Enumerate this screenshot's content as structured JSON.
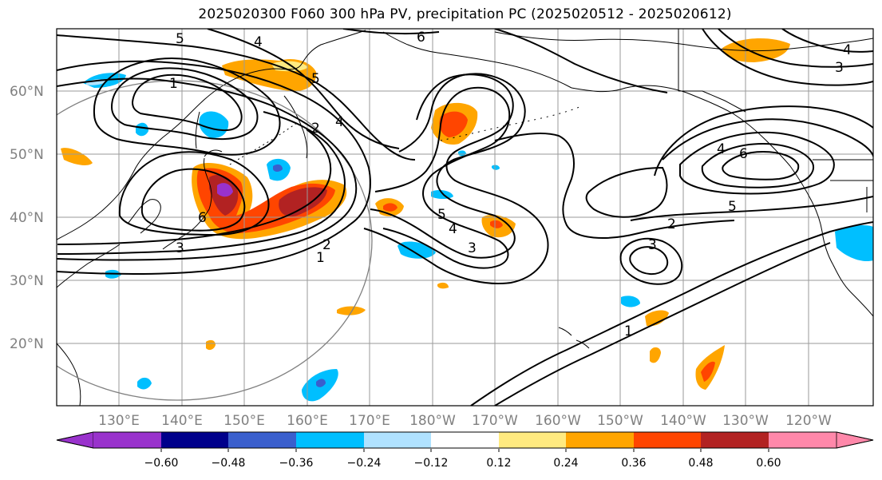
{
  "title": "2025020300 F060 300 hPa PV, precipitation PC (2025020512 - 2025020612)",
  "lat_labels": [
    "60°N",
    "50°N",
    "40°N",
    "30°N",
    "20°N"
  ],
  "lon_labels": [
    "130°E",
    "140°E",
    "150°E",
    "160°E",
    "170°E",
    "180°W",
    "170°W",
    "160°W",
    "150°W",
    "140°W",
    "130°W",
    "120°W"
  ],
  "contour_labels": [
    "5",
    "4",
    "6",
    "5",
    "1",
    "2",
    "4",
    "6",
    "5",
    "4",
    "3",
    "3",
    "1",
    "2",
    "2",
    "3",
    "4",
    "6",
    "5",
    "1",
    "4",
    "3"
  ],
  "colorbar": {
    "ticks": [
      "−0.60",
      "−0.48",
      "−0.36",
      "−0.24",
      "−0.12",
      "0.12",
      "0.24",
      "0.36",
      "0.48",
      "0.60"
    ],
    "colors": [
      "#9932cc",
      "#00008b",
      "#3a5fcd",
      "#00bfff",
      "#b0e2ff",
      "#ffffff",
      "#ffea80",
      "#ffa500",
      "#ff4500",
      "#b22222",
      "#ff88aa"
    ]
  },
  "shading_colors": {
    "light_yellow": "#ffea80",
    "orange": "#ffa500",
    "red_orange": "#ff4500",
    "dark_red": "#b22222",
    "purple": "#9932cc",
    "deep_sky_blue": "#00bfff",
    "light_blue": "#b0e2ff",
    "royal_blue": "#3a5fcd"
  }
}
